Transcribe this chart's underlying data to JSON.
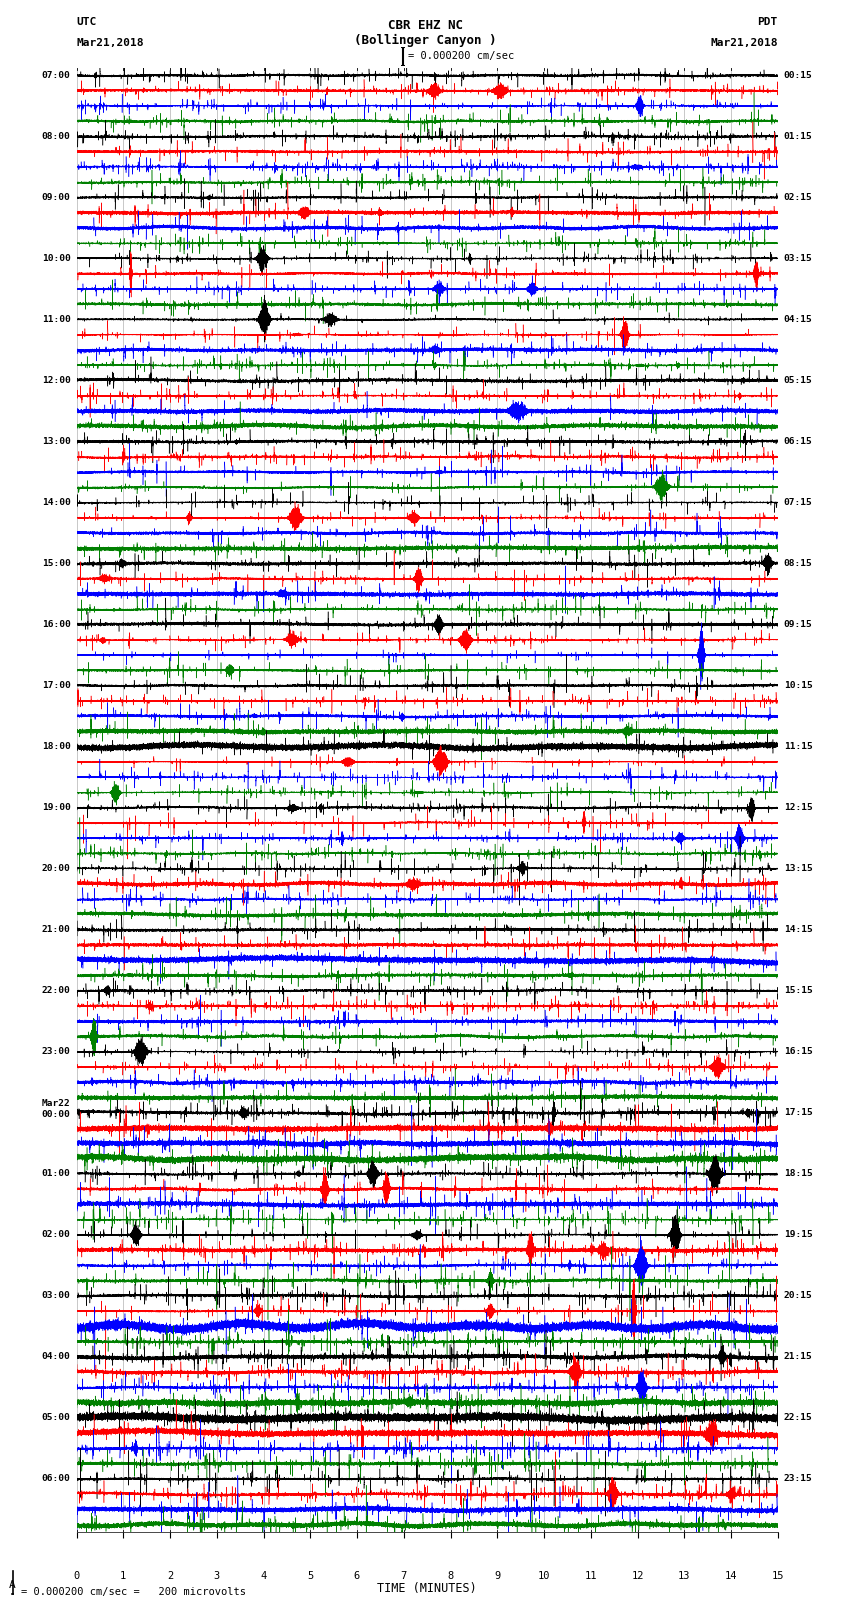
{
  "title_line1": "CBR EHZ NC",
  "title_line2": "(Bollinger Canyon )",
  "scale_text": "= 0.000200 cm/sec",
  "scale_label": "= 0.000200 cm/sec =   200 microvolts",
  "left_header_line1": "UTC",
  "left_header_line2": "Mar21,2018",
  "right_header_line1": "PDT",
  "right_header_line2": "Mar21,2018",
  "xlabel": "TIME (MINUTES)",
  "bg_color": "#ffffff",
  "trace_colors": [
    "black",
    "red",
    "blue",
    "green"
  ],
  "num_rows": 24,
  "traces_per_row": 4,
  "duration_minutes": 15,
  "sample_rate": 50,
  "left_times_utc": [
    "07:00",
    "08:00",
    "09:00",
    "10:00",
    "11:00",
    "12:00",
    "13:00",
    "14:00",
    "15:00",
    "16:00",
    "17:00",
    "18:00",
    "19:00",
    "20:00",
    "21:00",
    "22:00",
    "23:00",
    "Mar22",
    "01:00",
    "02:00",
    "03:00",
    "04:00",
    "05:00",
    "06:00"
  ],
  "left_times_utc_line2": [
    "",
    "",
    "",
    "",
    "",
    "",
    "",
    "",
    "",
    "",
    "",
    "",
    "",
    "",
    "",
    "",
    "",
    "00:00",
    "",
    "",
    "",
    "",
    "",
    ""
  ],
  "right_times_pdt": [
    "00:15",
    "01:15",
    "02:15",
    "03:15",
    "04:15",
    "05:15",
    "06:15",
    "07:15",
    "08:15",
    "09:15",
    "10:15",
    "11:15",
    "12:15",
    "13:15",
    "14:15",
    "15:15",
    "16:15",
    "17:15",
    "18:15",
    "19:15",
    "20:15",
    "21:15",
    "22:15",
    "23:15"
  ],
  "noise_seed": 12345,
  "fig_width": 8.5,
  "fig_height": 16.13,
  "dpi": 100,
  "grid_color": "#888888",
  "grid_linewidth": 0.4,
  "trace_linewidth": 0.35,
  "row_amplitude": 0.38
}
